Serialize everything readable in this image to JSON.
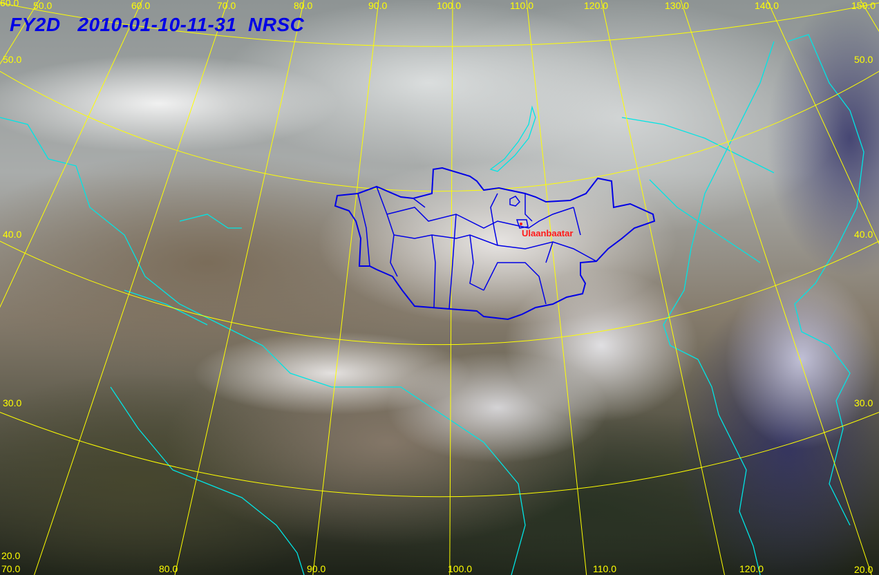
{
  "title": "FY2D   2010-01-10-11-31  NRSC",
  "city_label": "Ulaanbaatar",
  "top_lon_labels": [
    "50.0",
    "60.0",
    "70.0",
    "80.0",
    "90.0",
    "100.0",
    "110.0",
    "120.0",
    "130.0",
    "140.0",
    "150.0"
  ],
  "bottom_lon_labels": [
    "70.0",
    "80.0",
    "90.0",
    "100.0",
    "110.0",
    "120.0"
  ],
  "left_lat_labels": [
    "60.0",
    "50.0",
    "40.0",
    "30.0",
    "20.0"
  ],
  "right_lat_labels": [
    "50.0",
    "40.0",
    "30.0",
    "20.0"
  ],
  "colors": {
    "grid": "#ffff00",
    "coastline": "#00e5e5",
    "boundary": "#0000e6",
    "title": "#0000e6",
    "city": "#ff1a1a"
  }
}
